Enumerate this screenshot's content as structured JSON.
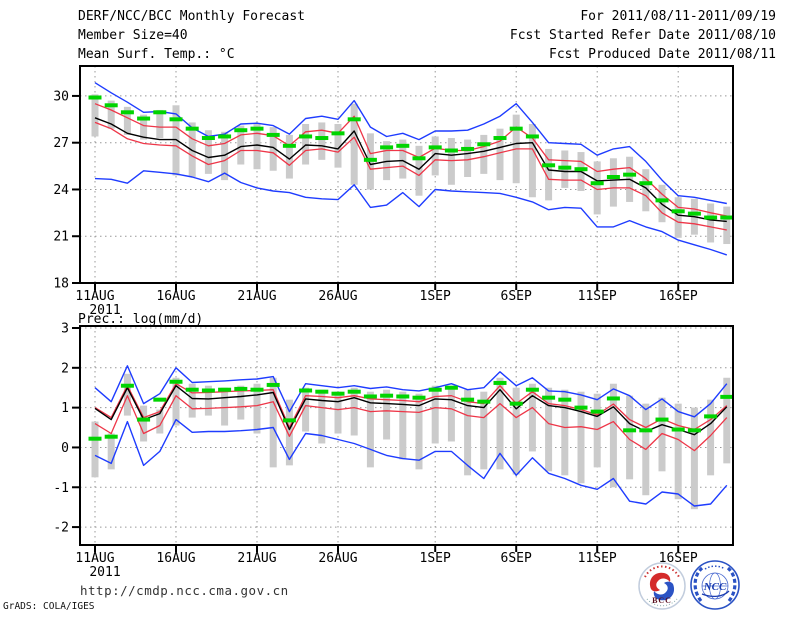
{
  "header": {
    "left": {
      "line1": "DERF/NCC/BCC Monthly Forecast",
      "line2": "Member Size=40",
      "line3": "Mean Surf. Temp.: °C"
    },
    "right": {
      "line1": "For 2011/08/11-2011/09/19",
      "line2": "Fcst Started Refer Date 2011/08/10",
      "line3": "Fcst Produced Date 2011/08/11"
    }
  },
  "section_labels": {
    "prec_title": "Prec.: log(mm/d)"
  },
  "footer": {
    "url": "http://cmdp.ncc.cma.gov.cn",
    "credit": "GrADS: COLA/IGES",
    "logos": [
      {
        "name": "BCC Beijing Climate Center logo",
        "text": "BCC"
      },
      {
        "name": "NCC National Climate Center logo",
        "text": "NCC"
      }
    ]
  },
  "colors": {
    "frame": "#000000",
    "grid": "#989898",
    "spread_bar": "#cbcbcb",
    "ensemble_envelope_blue": "#1e3cff",
    "spread_red": "#ee3648",
    "mean_black": "#000000",
    "consensus_green": "#00d400",
    "url_text": "#333333"
  },
  "chart_data": [
    {
      "id": "temp",
      "type": "line",
      "title": "Mean Surf. Temp.: °C",
      "ylabel": "°C",
      "ylim": [
        18,
        31.92
      ],
      "y_ticks": [
        30,
        27,
        24,
        21,
        18
      ],
      "grid": true,
      "x_days": 40,
      "x_ticks": [
        {
          "day": 0,
          "label": "11AUG",
          "year": "2011"
        },
        {
          "day": 5,
          "label": "16AUG"
        },
        {
          "day": 10,
          "label": "21AUG"
        },
        {
          "day": 15,
          "label": "26AUG"
        },
        {
          "day": 21,
          "label": "1SEP"
        },
        {
          "day": 26,
          "label": "6SEP"
        },
        {
          "day": 31,
          "label": "11SEP"
        },
        {
          "day": 36,
          "label": "16SEP"
        }
      ],
      "series": [
        {
          "name": "ensemble-max",
          "color": "#1e3cff",
          "style": "solid",
          "width": 1.4,
          "values": [
            30.85,
            30.2,
            29.6,
            28.95,
            29.0,
            28.85,
            27.95,
            27.4,
            27.55,
            28.2,
            28.25,
            28.1,
            27.55,
            28.55,
            28.7,
            28.5,
            29.7,
            28.0,
            27.4,
            27.6,
            27.2,
            27.75,
            27.75,
            27.8,
            28.2,
            28.7,
            29.5,
            28.3,
            27.0,
            26.95,
            26.9,
            26.2,
            26.6,
            26.75,
            25.8,
            24.6,
            23.6,
            23.5,
            23.3,
            23.1
          ]
        },
        {
          "name": "upper-spread",
          "color": "#ee3648",
          "style": "solid",
          "width": 1.3,
          "values": [
            29.5,
            29.1,
            28.6,
            28.1,
            28.0,
            28.0,
            27.25,
            26.8,
            26.95,
            27.5,
            27.6,
            27.45,
            26.8,
            27.7,
            27.8,
            27.6,
            28.7,
            26.3,
            26.5,
            26.5,
            26.05,
            26.65,
            26.5,
            26.5,
            26.75,
            27.1,
            28.0,
            27.3,
            25.9,
            25.85,
            25.8,
            25.15,
            25.3,
            25.4,
            24.7,
            23.7,
            22.85,
            22.75,
            22.5,
            22.3
          ]
        },
        {
          "name": "ensemble-mean",
          "color": "#000000",
          "style": "solid",
          "width": 1.4,
          "values": [
            28.6,
            28.2,
            27.6,
            27.35,
            27.2,
            27.2,
            26.5,
            26.05,
            26.2,
            26.75,
            26.85,
            26.7,
            25.95,
            26.85,
            26.8,
            26.6,
            27.75,
            25.6,
            25.8,
            25.85,
            25.3,
            26.3,
            26.2,
            26.3,
            26.45,
            26.7,
            26.95,
            27.0,
            25.25,
            25.15,
            25.15,
            24.55,
            24.6,
            24.65,
            24.1,
            23.05,
            22.35,
            22.25,
            22.05,
            21.95
          ]
        },
        {
          "name": "lower-spread",
          "color": "#ee3648",
          "style": "solid",
          "width": 1.3,
          "values": [
            28.3,
            27.9,
            27.25,
            26.95,
            26.85,
            26.8,
            26.15,
            25.6,
            25.85,
            26.5,
            26.5,
            26.35,
            25.55,
            26.5,
            26.6,
            26.4,
            27.35,
            25.3,
            25.4,
            25.5,
            24.9,
            25.9,
            25.85,
            25.9,
            26.1,
            26.35,
            26.6,
            26.6,
            24.65,
            24.6,
            24.6,
            24.0,
            24.1,
            24.1,
            23.6,
            22.5,
            21.9,
            21.8,
            21.6,
            21.4
          ]
        },
        {
          "name": "ensemble-min",
          "color": "#1e3cff",
          "style": "solid",
          "width": 1.4,
          "values": [
            24.7,
            24.65,
            24.4,
            25.2,
            25.1,
            25.0,
            24.8,
            24.5,
            25.05,
            24.45,
            24.1,
            23.9,
            23.8,
            23.5,
            23.4,
            23.35,
            24.3,
            22.85,
            23.0,
            23.8,
            22.9,
            24.0,
            23.9,
            23.85,
            23.8,
            23.75,
            23.5,
            23.2,
            22.7,
            22.85,
            22.8,
            21.6,
            21.6,
            22.0,
            21.6,
            21.3,
            20.75,
            20.45,
            20.15,
            19.8
          ]
        },
        {
          "name": "consensus-dashed",
          "color": "#00d400",
          "style": "flat-dash",
          "width": 4,
          "values": [
            29.9,
            29.4,
            28.95,
            28.55,
            28.95,
            28.5,
            27.9,
            27.3,
            27.4,
            27.8,
            27.9,
            27.5,
            26.8,
            27.4,
            27.3,
            27.6,
            28.5,
            25.9,
            26.7,
            26.8,
            26.0,
            26.7,
            26.5,
            26.6,
            26.9,
            27.3,
            27.9,
            27.4,
            25.55,
            25.4,
            25.3,
            24.4,
            24.8,
            24.95,
            24.4,
            23.3,
            22.6,
            22.45,
            22.2,
            22.2
          ]
        }
      ],
      "bars": {
        "name": "member-spread-bars",
        "color": "#cbcbcb",
        "width": 7,
        "top": [
          30.1,
          29.7,
          29.3,
          28.8,
          29.1,
          29.4,
          28.3,
          27.8,
          27.7,
          28.1,
          28.2,
          28.0,
          27.5,
          28.2,
          28.3,
          28.2,
          29.5,
          27.6,
          27.1,
          27.2,
          26.8,
          27.4,
          27.3,
          27.2,
          27.5,
          27.9,
          28.8,
          28.2,
          26.6,
          26.5,
          26.4,
          25.8,
          26.0,
          26.1,
          25.3,
          24.3,
          23.5,
          23.4,
          23.1,
          22.9
        ],
        "bottom": [
          27.4,
          27.9,
          27.5,
          27.2,
          27.3,
          24.9,
          24.8,
          25.0,
          24.6,
          25.6,
          25.3,
          25.2,
          24.7,
          25.6,
          25.9,
          25.4,
          24.3,
          24.0,
          24.6,
          24.7,
          23.6,
          24.9,
          24.3,
          24.8,
          25.0,
          24.6,
          24.4,
          23.5,
          23.3,
          24.1,
          23.9,
          22.4,
          22.9,
          23.2,
          22.6,
          21.9,
          20.9,
          21.1,
          20.6,
          20.5
        ]
      }
    },
    {
      "id": "prec",
      "type": "line",
      "title": "Prec.: log(mm/d)",
      "ylabel": "log(mm/d)",
      "ylim": [
        -2.45,
        3.05
      ],
      "y_ticks": [
        3,
        2,
        1,
        0,
        -1,
        -2
      ],
      "grid": true,
      "x_days": 40,
      "x_ticks": [
        {
          "day": 0,
          "label": "11AUG",
          "year": "2011"
        },
        {
          "day": 5,
          "label": "16AUG"
        },
        {
          "day": 10,
          "label": "21AUG"
        },
        {
          "day": 15,
          "label": "26AUG"
        },
        {
          "day": 21,
          "label": "1SEP"
        },
        {
          "day": 26,
          "label": "6SEP"
        },
        {
          "day": 31,
          "label": "11SEP"
        },
        {
          "day": 36,
          "label": "16SEP"
        }
      ],
      "series": [
        {
          "name": "ensemble-max",
          "color": "#1e3cff",
          "style": "solid",
          "width": 1.4,
          "values": [
            1.5,
            1.15,
            2.05,
            1.1,
            1.35,
            2.0,
            1.63,
            1.65,
            1.67,
            1.7,
            1.72,
            1.78,
            0.9,
            1.6,
            1.55,
            1.5,
            1.55,
            1.48,
            1.52,
            1.45,
            1.42,
            1.5,
            1.6,
            1.45,
            1.5,
            1.9,
            1.55,
            1.75,
            1.42,
            1.4,
            1.32,
            1.2,
            1.47,
            1.3,
            0.95,
            1.22,
            0.9,
            0.77,
            1.1,
            1.6
          ]
        },
        {
          "name": "upper-spread",
          "color": "#ee3648",
          "style": "solid",
          "width": 1.3,
          "values": [
            1.0,
            0.75,
            1.55,
            0.75,
            0.9,
            1.6,
            1.37,
            1.38,
            1.4,
            1.42,
            1.43,
            1.45,
            0.5,
            1.3,
            1.28,
            1.25,
            1.3,
            1.22,
            1.2,
            1.18,
            1.15,
            1.28,
            1.3,
            1.15,
            1.1,
            1.55,
            1.1,
            1.4,
            1.1,
            1.05,
            0.95,
            0.82,
            1.09,
            0.7,
            0.5,
            0.72,
            0.55,
            0.45,
            0.7,
            1.05
          ]
        },
        {
          "name": "ensemble-mean",
          "color": "#000000",
          "style": "solid",
          "width": 1.4,
          "values": [
            0.98,
            0.7,
            1.5,
            0.7,
            0.85,
            1.55,
            1.23,
            1.22,
            1.25,
            1.28,
            1.32,
            1.38,
            0.45,
            1.22,
            1.18,
            1.15,
            1.25,
            1.12,
            1.1,
            1.08,
            1.05,
            1.22,
            1.2,
            1.05,
            1.0,
            1.45,
            0.97,
            1.3,
            1.05,
            1.0,
            0.9,
            0.78,
            1.02,
            0.6,
            0.4,
            0.57,
            0.45,
            0.32,
            0.6,
            1.02
          ]
        },
        {
          "name": "lower-spread",
          "color": "#ee3648",
          "style": "solid",
          "width": 1.3,
          "values": [
            0.6,
            0.35,
            1.3,
            0.35,
            0.55,
            1.3,
            0.97,
            0.98,
            1.0,
            1.02,
            1.05,
            1.15,
            0.28,
            1.05,
            1.0,
            0.95,
            1.0,
            0.9,
            0.92,
            0.9,
            0.88,
            1.0,
            0.97,
            0.8,
            0.75,
            1.1,
            0.75,
            1.0,
            0.6,
            0.5,
            0.52,
            0.45,
            0.65,
            0.2,
            -0.05,
            0.35,
            0.2,
            -0.08,
            0.3,
            0.75
          ]
        },
        {
          "name": "ensemble-min",
          "color": "#1e3cff",
          "style": "solid",
          "width": 1.4,
          "values": [
            -0.2,
            -0.4,
            0.65,
            -0.45,
            -0.1,
            0.7,
            0.38,
            0.4,
            0.4,
            0.42,
            0.45,
            0.5,
            -0.3,
            0.35,
            0.3,
            0.2,
            0.1,
            -0.05,
            -0.2,
            -0.28,
            -0.32,
            -0.1,
            -0.1,
            -0.45,
            -0.78,
            -0.15,
            -0.7,
            -0.26,
            -0.65,
            -0.78,
            -0.95,
            -1.05,
            -0.78,
            -1.35,
            -1.42,
            -1.12,
            -1.17,
            -1.47,
            -1.42,
            -0.95
          ]
        },
        {
          "name": "consensus-dashed",
          "color": "#00d400",
          "style": "flat-dash",
          "width": 4,
          "values": [
            0.22,
            0.27,
            1.55,
            0.7,
            1.2,
            1.65,
            1.45,
            1.43,
            1.45,
            1.47,
            1.45,
            1.57,
            0.68,
            1.43,
            1.4,
            1.35,
            1.4,
            1.28,
            1.3,
            1.28,
            1.25,
            1.45,
            1.5,
            1.2,
            1.15,
            1.62,
            1.1,
            1.45,
            1.25,
            1.2,
            1.0,
            0.9,
            1.23,
            0.43,
            0.43,
            0.7,
            0.45,
            0.43,
            0.78,
            1.27
          ]
        }
      ],
      "bars": {
        "name": "member-spread-bars",
        "color": "#cbcbcb",
        "width": 7,
        "top": [
          0.65,
          0.35,
          1.85,
          1.05,
          0.95,
          1.75,
          1.6,
          1.55,
          1.5,
          1.55,
          1.6,
          1.75,
          1.2,
          1.5,
          1.45,
          1.4,
          1.5,
          1.4,
          1.45,
          1.4,
          1.35,
          1.55,
          1.55,
          1.45,
          1.4,
          1.75,
          1.5,
          1.6,
          1.5,
          1.45,
          1.4,
          1.35,
          1.6,
          1.3,
          1.1,
          1.25,
          1.1,
          1.0,
          1.2,
          1.75
        ],
        "bottom": [
          -0.75,
          -0.55,
          0.8,
          0.15,
          0.35,
          0.55,
          0.75,
          0.8,
          0.55,
          0.7,
          0.35,
          -0.5,
          -0.45,
          0.4,
          0.1,
          0.35,
          0.3,
          -0.5,
          0.2,
          -0.3,
          -0.55,
          0.1,
          0.15,
          -0.7,
          -0.55,
          -0.55,
          -0.68,
          -0.1,
          -0.6,
          -0.7,
          -0.9,
          -0.5,
          -1.0,
          -0.8,
          -1.2,
          -0.6,
          -1.3,
          -1.55,
          -0.7,
          -0.4
        ]
      }
    }
  ]
}
